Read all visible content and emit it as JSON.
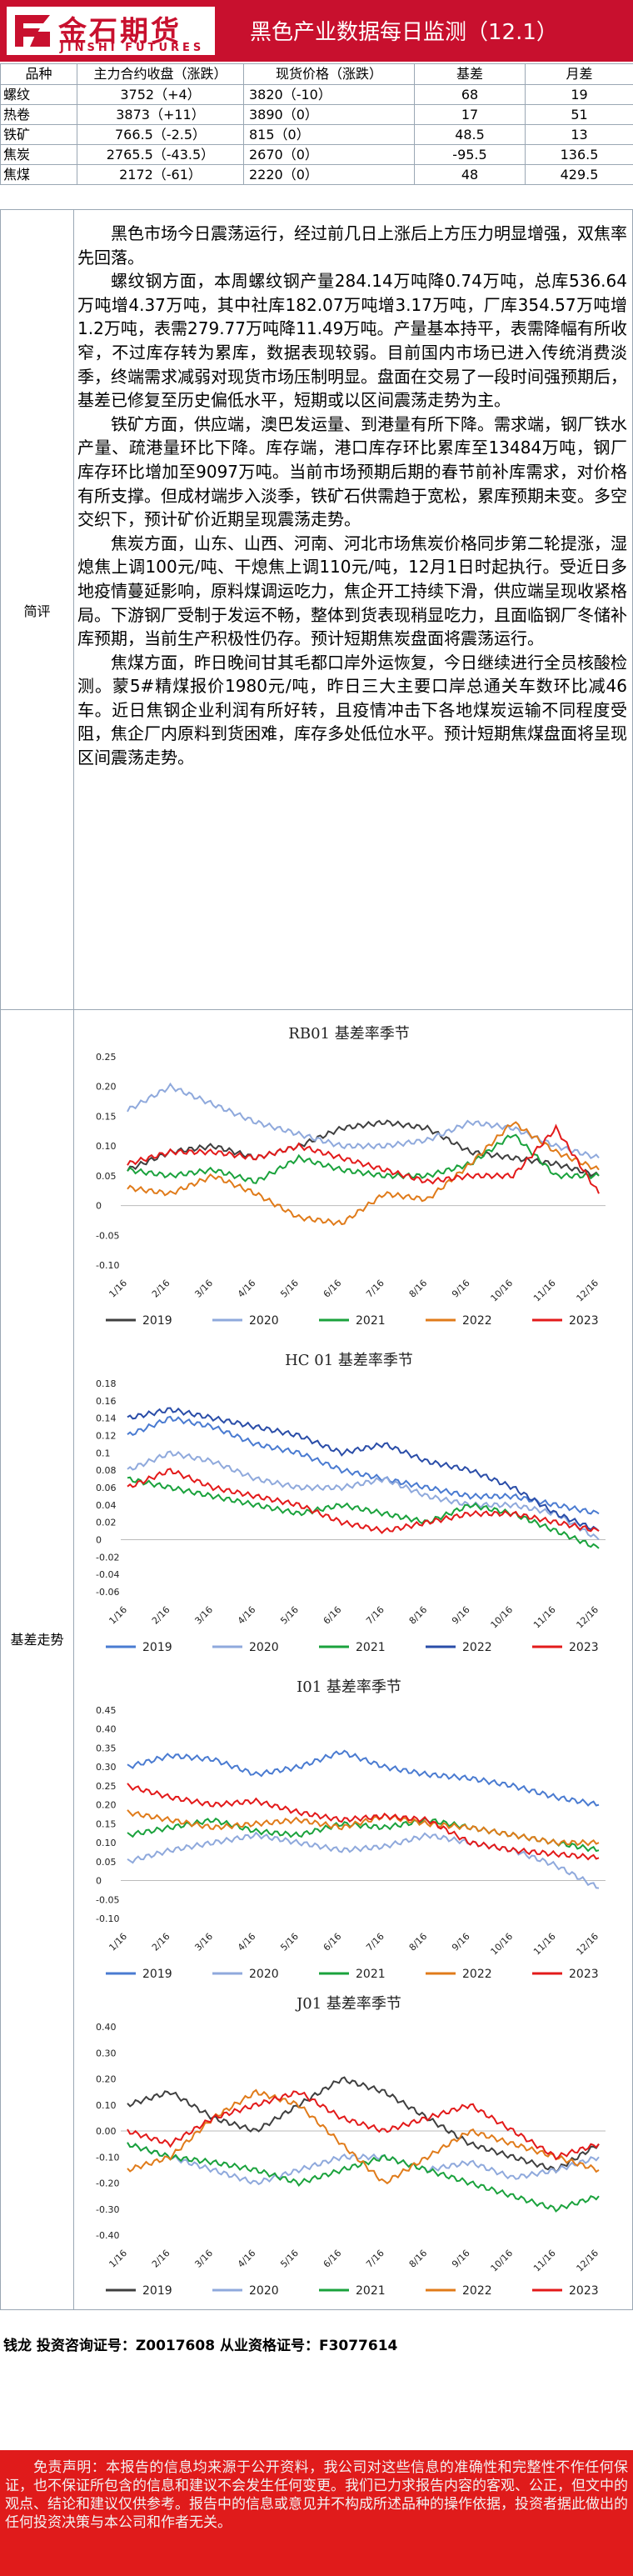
{
  "header": {
    "logo_cn": "金石期货",
    "logo_en": "JINSHI FUTURES",
    "title": "黑色产业数据每日监测（12.1）"
  },
  "market_table": {
    "columns": [
      "品种",
      "主力合约收盘（涨跌）",
      "现货价格（涨跌）",
      "基差",
      "月差"
    ],
    "rows": [
      {
        "name": "螺纹",
        "close": "3752（+4）",
        "spot": "3820（-10）",
        "basis": "68",
        "spread": "19"
      },
      {
        "name": "热卷",
        "close": "3873（+11）",
        "spot": "3890（0）",
        "basis": "17",
        "spread": "51"
      },
      {
        "name": "铁矿",
        "close": "766.5（-2.5）",
        "spot": "815（0）",
        "basis": "48.5",
        "spread": "13"
      },
      {
        "name": "焦炭",
        "close": "2765.5（-43.5）",
        "spot": "2670（0）",
        "basis": "-95.5",
        "spread": "136.5"
      },
      {
        "name": "焦煤",
        "close": "2172（-61）",
        "spot": "2220（0）",
        "basis": "48",
        "spread": "429.5"
      }
    ]
  },
  "commentary": {
    "label": "简评",
    "paragraphs": [
      "黑色市场今日震荡运行，经过前几日上涨后上方压力明显增强，双焦率先回落。",
      "螺纹钢方面，本周螺纹钢产量284.14万吨降0.74万吨，总库536.64万吨增4.37万吨，其中社库182.07万吨增3.17万吨，厂库354.57万吨增1.2万吨，表需279.77万吨降11.49万吨。产量基本持平，表需降幅有所收窄，不过库存转为累库，数据表现较弱。目前国内市场已进入传统消费淡季，终端需求减弱对现货市场压制明显。盘面在交易了一段时间强预期后，基差已修复至历史偏低水平，短期或以区间震荡走势为主。",
      "铁矿方面，供应端，澳巴发运量、到港量有所下降。需求端，钢厂铁水产量、疏港量环比下降。库存端，港口库存环比累库至13484万吨，钢厂库存环比增加至9097万吨。当前市场预期后期的春节前补库需求，对价格有所支撑。但成材端步入淡季，铁矿石供需趋于宽松，累库预期未变。多空交织下，预计矿价近期呈现震荡走势。",
      "焦炭方面，山东、山西、河南、河北市场焦炭价格同步第二轮提涨，湿熄焦上调100元/吨、干熄焦上调110元/吨，12月1日时起执行。受近日多地疫情蔓延影响，原料煤调运吃力，焦企开工持续下滑，供应端呈现收紧格局。下游钢厂受制于发运不畅，整体到货表现稍显吃力，且面临钢厂冬储补库预期，当前生产积极性仍存。预计短期焦炭盘面将震荡运行。",
      "焦煤方面，昨日晚间甘其毛都口岸外运恢复，今日继续进行全员核酸检测。蒙5#精煤报价1980元/吨，昨日三大主要口岸总通关车数环比减46车。近日焦钢企业利润有所好转，且疫情冲击下各地煤炭运输不同程度受阻，焦企厂内原料到货困难，库存多处低位水平。预计短期焦煤盘面将呈现区间震荡走势。"
    ]
  },
  "basis_section": {
    "label": "基差走势"
  },
  "chart_colors": {
    "2019": "#3f3f3f",
    "2020": "#8fa9dc",
    "2021": "#1aa23c",
    "2022": "#e07b1a",
    "2023": "#e31a1a",
    "2019_hc": "#4a7bd1",
    "2022_hc": "#2a4da8"
  },
  "chart_data": [
    {
      "type": "line",
      "title": "RB01 基差率季节",
      "x_ticks": [
        "1/16",
        "2/16",
        "3/16",
        "4/16",
        "5/16",
        "6/16",
        "7/16",
        "8/16",
        "9/16",
        "10/16",
        "11/16",
        "12/16"
      ],
      "y_ticks": [
        "-0.10",
        "-0.05",
        "0",
        "0.05",
        "0.10",
        "0.15",
        "0.20",
        "0.25"
      ],
      "ylim": [
        -0.1,
        0.25
      ],
      "legend": [
        "2019",
        "2020",
        "2021",
        "2022",
        "2023"
      ],
      "series": [
        {
          "name": "2019",
          "color_key": "2019",
          "values": [
            0.06,
            0.09,
            0.1,
            0.08,
            0.1,
            0.13,
            0.14,
            0.13,
            0.09,
            0.08,
            0.07,
            0.05
          ]
        },
        {
          "name": "2020",
          "color_key": "2020",
          "values": [
            0.16,
            0.2,
            0.17,
            0.14,
            0.12,
            0.1,
            0.1,
            0.11,
            0.14,
            0.13,
            0.1,
            0.08
          ]
        },
        {
          "name": "2021",
          "color_key": "2021",
          "values": [
            0.06,
            0.05,
            0.06,
            0.04,
            0.08,
            0.06,
            0.05,
            0.05,
            0.07,
            0.12,
            0.05,
            0.05
          ]
        },
        {
          "name": "2022",
          "color_key": "2022",
          "values": [
            0.03,
            0.02,
            0.05,
            0.02,
            -0.02,
            -0.03,
            0.02,
            0.01,
            0.07,
            0.14,
            0.09,
            0.06
          ]
        },
        {
          "name": "2023",
          "color_key": "2023",
          "values": [
            0.07,
            0.09,
            0.09,
            0.08,
            0.1,
            0.08,
            0.06,
            0.04,
            0.05,
            0.05,
            0.13,
            0.02
          ]
        }
      ]
    },
    {
      "type": "line",
      "title": "HC 01 基差率季节",
      "x_ticks": [
        "1/16",
        "2/16",
        "3/16",
        "4/16",
        "5/16",
        "6/16",
        "7/16",
        "8/16",
        "9/16",
        "10/16",
        "11/16",
        "12/16"
      ],
      "y_ticks": [
        "-0.06",
        "-0.04",
        "-0.02",
        "0",
        "0.02",
        "0.04",
        "0.06",
        "0.08",
        "0.1",
        "0.12",
        "0.14",
        "0.16",
        "0.18"
      ],
      "ylim": [
        -0.06,
        0.18
      ],
      "legend": [
        "2019",
        "2020",
        "2021",
        "2022",
        "2023"
      ],
      "series": [
        {
          "name": "2019",
          "color_key": "2019_hc",
          "values": [
            0.12,
            0.14,
            0.13,
            0.11,
            0.1,
            0.08,
            0.07,
            0.06,
            0.05,
            0.05,
            0.04,
            0.03
          ]
        },
        {
          "name": "2020",
          "color_key": "2020",
          "values": [
            0.08,
            0.1,
            0.09,
            0.07,
            0.06,
            0.06,
            0.07,
            0.05,
            0.04,
            0.04,
            0.03,
            0.0
          ]
        },
        {
          "name": "2021",
          "color_key": "2021",
          "values": [
            0.07,
            0.06,
            0.05,
            0.04,
            0.03,
            0.04,
            0.03,
            0.02,
            0.04,
            0.03,
            0.01,
            -0.01
          ]
        },
        {
          "name": "2022",
          "color_key": "2022_hc",
          "values": [
            0.14,
            0.15,
            0.14,
            0.13,
            0.12,
            0.1,
            0.11,
            0.09,
            0.08,
            0.06,
            0.03,
            0.01
          ]
        },
        {
          "name": "2023",
          "color_key": "2023",
          "values": [
            0.06,
            0.08,
            0.06,
            0.05,
            0.04,
            0.02,
            0.01,
            0.02,
            0.03,
            0.03,
            0.02,
            0.01
          ]
        }
      ]
    },
    {
      "type": "line",
      "title": "I01 基差率季节",
      "x_ticks": [
        "1/16",
        "2/16",
        "3/16",
        "4/16",
        "5/16",
        "6/16",
        "7/16",
        "8/16",
        "9/16",
        "10/16",
        "11/16",
        "12/16"
      ],
      "y_ticks": [
        "-0.10",
        "-0.05",
        "0",
        "0.05",
        "0.10",
        "0.15",
        "0.20",
        "0.25",
        "0.30",
        "0.35",
        "0.40",
        "0.45"
      ],
      "ylim": [
        -0.1,
        0.45
      ],
      "legend": [
        "2019",
        "2020",
        "2021",
        "2022",
        "2023"
      ],
      "series": [
        {
          "name": "2019",
          "color_key": "2019_hc",
          "values": [
            0.3,
            0.33,
            0.32,
            0.28,
            0.3,
            0.34,
            0.3,
            0.28,
            0.27,
            0.25,
            0.22,
            0.2
          ]
        },
        {
          "name": "2020",
          "color_key": "2020",
          "values": [
            0.05,
            0.08,
            0.1,
            0.12,
            0.1,
            0.08,
            0.09,
            0.12,
            0.1,
            0.08,
            0.04,
            -0.02
          ]
        },
        {
          "name": "2021",
          "color_key": "2021",
          "values": [
            0.12,
            0.14,
            0.16,
            0.13,
            0.12,
            0.15,
            0.14,
            0.16,
            0.14,
            0.12,
            0.1,
            0.08
          ]
        },
        {
          "name": "2022",
          "color_key": "2022",
          "values": [
            0.18,
            0.16,
            0.14,
            0.15,
            0.16,
            0.14,
            0.17,
            0.15,
            0.14,
            0.12,
            0.1,
            0.1
          ]
        },
        {
          "name": "2023",
          "color_key": "2023",
          "values": [
            0.25,
            0.22,
            0.2,
            0.21,
            0.18,
            0.16,
            0.17,
            0.16,
            0.1,
            0.08,
            0.07,
            0.06
          ]
        }
      ]
    },
    {
      "type": "line",
      "title": "J01 基差率季节",
      "x_ticks": [
        "1/16",
        "2/16",
        "3/16",
        "4/16",
        "5/16",
        "6/16",
        "7/16",
        "8/16",
        "9/16",
        "10/16",
        "11/16",
        "12/16"
      ],
      "y_ticks": [
        "-0.40",
        "-0.30",
        "-0.20",
        "-0.10",
        "0.00",
        "0.10",
        "0.20",
        "0.30",
        "0.40"
      ],
      "ylim": [
        -0.4,
        0.4
      ],
      "legend": [
        "2019",
        "2020",
        "2021",
        "2022",
        "2023"
      ],
      "series": [
        {
          "name": "2019",
          "color_key": "2019",
          "values": [
            0.1,
            0.15,
            0.05,
            0.0,
            0.1,
            0.2,
            0.15,
            0.05,
            -0.05,
            -0.1,
            -0.15,
            -0.05
          ]
        },
        {
          "name": "2020",
          "color_key": "2020",
          "values": [
            -0.05,
            -0.1,
            -0.15,
            -0.2,
            -0.15,
            -0.1,
            -0.1,
            -0.15,
            -0.12,
            -0.18,
            -0.15,
            -0.1
          ]
        },
        {
          "name": "2021",
          "color_key": "2021",
          "values": [
            -0.05,
            -0.1,
            -0.12,
            -0.15,
            -0.2,
            -0.15,
            -0.1,
            -0.15,
            -0.2,
            -0.25,
            -0.3,
            -0.25
          ]
        },
        {
          "name": "2022",
          "color_key": "2022",
          "values": [
            -0.15,
            -0.1,
            0.05,
            0.15,
            0.1,
            -0.05,
            -0.2,
            -0.1,
            0.0,
            -0.05,
            -0.1,
            -0.15
          ]
        },
        {
          "name": "2023",
          "color_key": "2023",
          "values": [
            0.0,
            -0.05,
            0.05,
            0.1,
            0.15,
            0.05,
            0.0,
            0.05,
            0.1,
            0.0,
            -0.1,
            -0.05
          ]
        }
      ]
    }
  ],
  "analyst": {
    "text": "钱龙 投资咨询证号：Z0017608  从业资格证号：F3077614"
  },
  "disclaimer": {
    "text": "免责声明：本报告的信息均来源于公开资料，我公司对这些信息的准确性和完整性不作任何保证，也不保证所包含的信息和建议不会发生任何变更。我们已力求报告内容的客观、公正，但文中的观点、结论和建议仅供参考。报告中的信息或意见并不构成所述品种的操作依据，投资者据此做出的任何投资决策与本公司和作者无关。"
  }
}
